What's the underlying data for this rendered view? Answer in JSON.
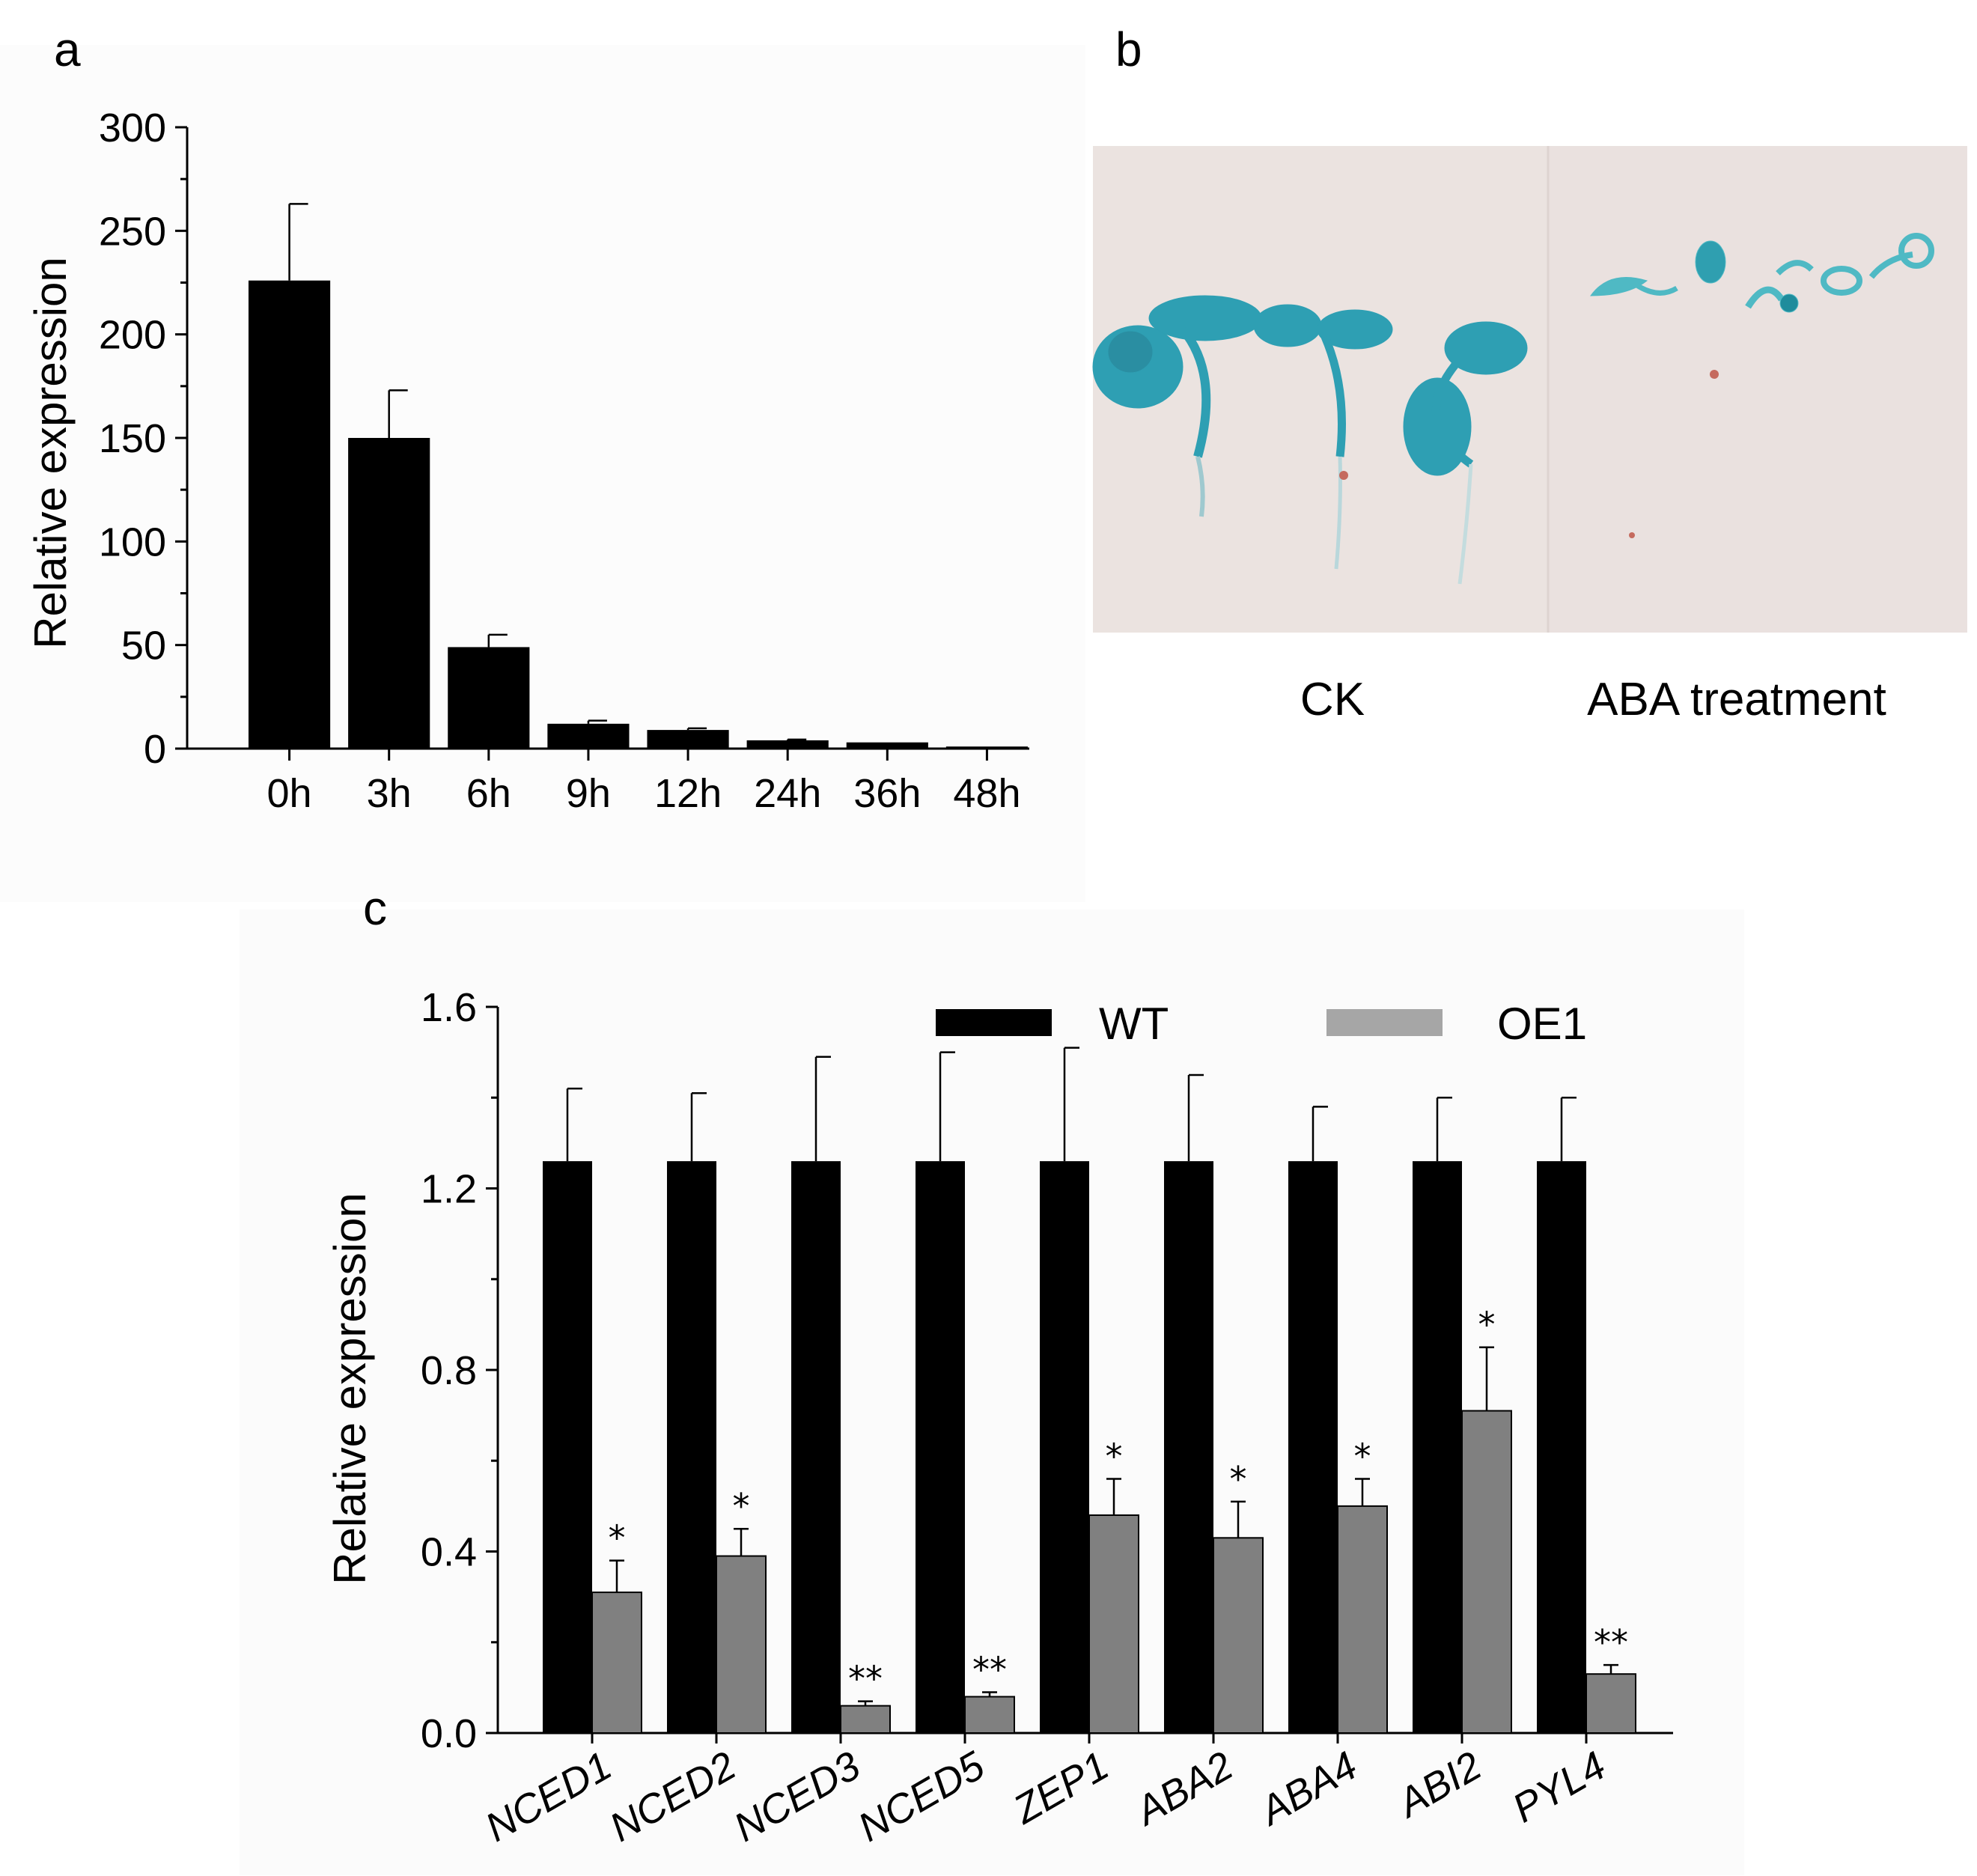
{
  "panel_labels": {
    "a": "a",
    "b": "b",
    "c": "c"
  },
  "photo_b": {
    "captions": {
      "left": "CK",
      "right": "ABA treatment"
    },
    "colors": {
      "background": "#ebe2df",
      "stain": "#2a9fb4"
    }
  },
  "chart_data": [
    {
      "id": "panel-a",
      "type": "bar",
      "title": "",
      "xlabel": "",
      "ylabel": "Relative expression",
      "ylim": [
        0,
        300
      ],
      "yticks": [
        0,
        50,
        100,
        150,
        200,
        250,
        300
      ],
      "categories": [
        "0h",
        "3h",
        "6h",
        "9h",
        "12h",
        "24h",
        "36h",
        "48h"
      ],
      "values": [
        226,
        150,
        49,
        12,
        9,
        4,
        3,
        1
      ],
      "errors": [
        37,
        23,
        6,
        1.5,
        0.8,
        0.4,
        0.3,
        0.2
      ],
      "color": "#000000",
      "grid": false,
      "legend": "none"
    },
    {
      "id": "panel-c",
      "type": "bar",
      "title": "",
      "xlabel": "",
      "ylabel": "Relative expression",
      "ylim": [
        0,
        1.6
      ],
      "yticks": [
        "0.0",
        "0.4",
        "0.8",
        "1.2",
        "1.6"
      ],
      "categories": [
        "NCED1",
        "NCED2",
        "NCED3",
        "NCED5",
        "ZEP1",
        "ABA2",
        "ABA4",
        "ABI2",
        "PYL4"
      ],
      "series": [
        {
          "name": "WT",
          "color": "#000000",
          "values": [
            1.26,
            1.26,
            1.26,
            1.26,
            1.26,
            1.26,
            1.26,
            1.26,
            1.26
          ],
          "errors": [
            0.16,
            0.15,
            0.23,
            0.24,
            0.25,
            0.19,
            0.12,
            0.14,
            0.14
          ]
        },
        {
          "name": "OE1",
          "color": "#808080",
          "values": [
            0.31,
            0.39,
            0.06,
            0.08,
            0.48,
            0.43,
            0.5,
            0.71,
            0.13
          ],
          "errors": [
            0.07,
            0.06,
            0.01,
            0.01,
            0.08,
            0.08,
            0.06,
            0.14,
            0.02
          ],
          "annotations": [
            "*",
            "*",
            "**",
            "**",
            "*",
            "*",
            "*",
            "*",
            "**"
          ]
        }
      ],
      "legend": "top",
      "grid": false
    }
  ]
}
